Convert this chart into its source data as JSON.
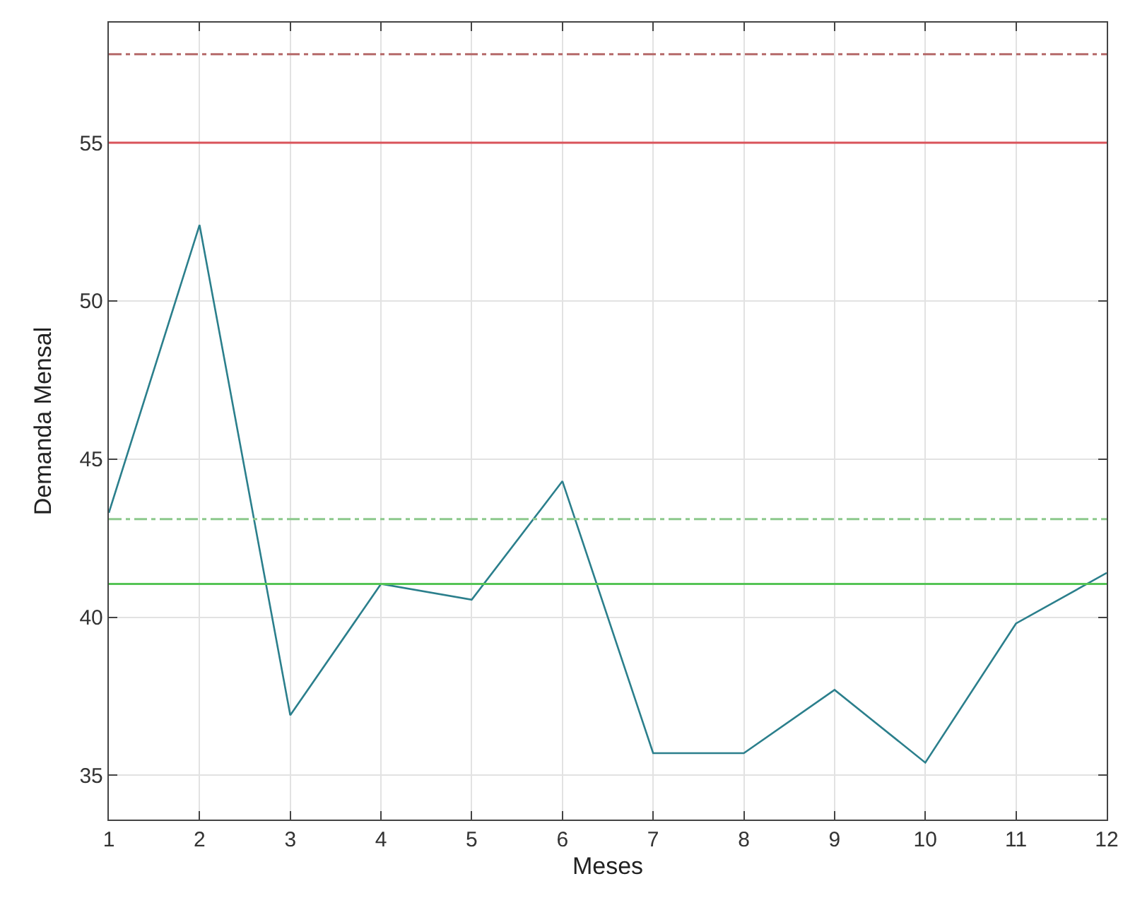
{
  "chart_data": {
    "type": "line",
    "xlabel": "Meses",
    "ylabel": "Demanda Mensal",
    "x": [
      1,
      2,
      3,
      4,
      5,
      6,
      7,
      8,
      9,
      10,
      11,
      12
    ],
    "series": [
      {
        "color": "#2b7f8c",
        "values": [
          43.3,
          52.4,
          36.9,
          41.05,
          40.55,
          44.3,
          35.7,
          35.7,
          37.7,
          35.4,
          39.8,
          41.4
        ]
      }
    ],
    "xlim": [
      1,
      12
    ],
    "xticks": [
      1,
      2,
      3,
      4,
      5,
      6,
      7,
      8,
      9,
      10,
      11,
      12
    ],
    "ylim": [
      33.6,
      58.8
    ],
    "yticks": [
      35,
      40,
      45,
      50,
      55
    ],
    "ref_lines": [
      {
        "axis": "y",
        "value": 57.8,
        "color": "#b56a6a",
        "line_style": "dashdot"
      },
      {
        "axis": "y",
        "value": 55,
        "color": "#d9535a",
        "line_style": "solid"
      },
      {
        "axis": "y",
        "value": 43.1,
        "color": "#8cc98c",
        "line_style": "dashdot"
      },
      {
        "axis": "y",
        "value": 41.05,
        "color": "#55c455",
        "line_style": "solid"
      }
    ],
    "grid": true,
    "marker": "none",
    "line_style": "solid"
  }
}
